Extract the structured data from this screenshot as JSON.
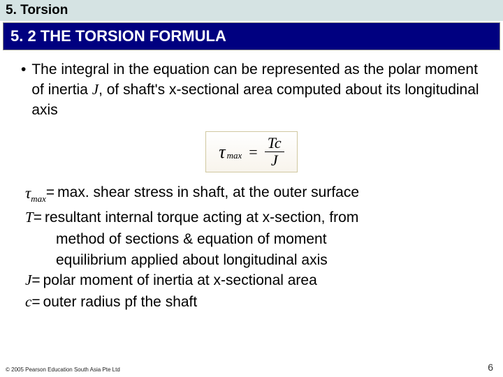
{
  "chapter": {
    "label": "5. Torsion"
  },
  "section": {
    "label": "5. 2 THE TORSION FORMULA"
  },
  "bullet": {
    "marker": "•",
    "text_part1": "The integral in the equation can be represented as the polar moment of inertia ",
    "j": "J",
    "text_part2": ", of shaft's x-sectional area computed about its longitudinal axis"
  },
  "formula": {
    "tau": "τ",
    "sub": "max",
    "eq": "=",
    "num": "Tc",
    "den": "J"
  },
  "defs": {
    "tau_max_sym_tau": "τ",
    "tau_max_sym_sub": "max",
    "tau_max_eq": " = ",
    "tau_max_text": "max. shear stress in shaft, at the outer surface",
    "T_sym": "T",
    "T_eq": " = ",
    "T_text1": "resultant internal torque acting at x-section, from",
    "T_text2": "method of sections & equation of moment",
    "T_text3": "equilibrium applied about longitudinal axis",
    "J_sym": "J",
    "J_eq": " = ",
    "J_text": "polar moment of inertia at x-sectional area",
    "c_sym": "c",
    "c_eq": " = ",
    "c_text": "outer radius pf the shaft"
  },
  "footer": {
    "copyright": "© 2005 Pearson Education South Asia Pte Ltd",
    "page": "6"
  }
}
